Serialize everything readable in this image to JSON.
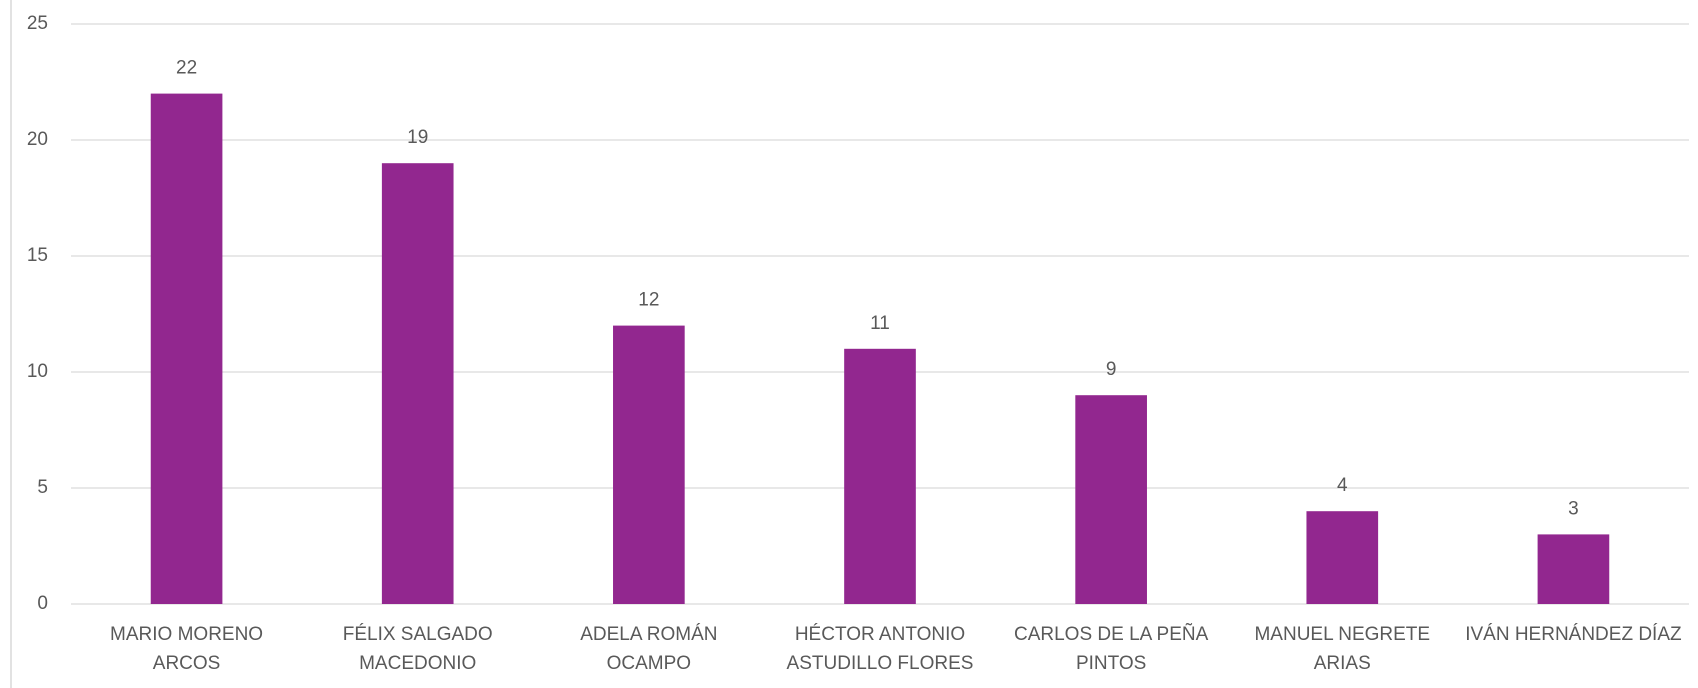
{
  "chart_data": {
    "type": "bar",
    "categories": [
      "MARIO MORENO ARCOS",
      "FÉLIX SALGADO MACEDONIO",
      "ADELA ROMÁN OCAMPO",
      "HÉCTOR ANTONIO ASTUDILLO FLORES",
      "CARLOS DE LA PEÑA PINTOS",
      "MANUEL NEGRETE ARIAS",
      "IVÁN HERNÁNDEZ DÍAZ"
    ],
    "values": [
      22,
      19,
      12,
      11,
      9,
      4,
      3
    ],
    "color": "#92278f",
    "ylim": [
      0,
      25
    ],
    "yticks": [
      0,
      5,
      10,
      15,
      20,
      25
    ],
    "grid": true
  }
}
